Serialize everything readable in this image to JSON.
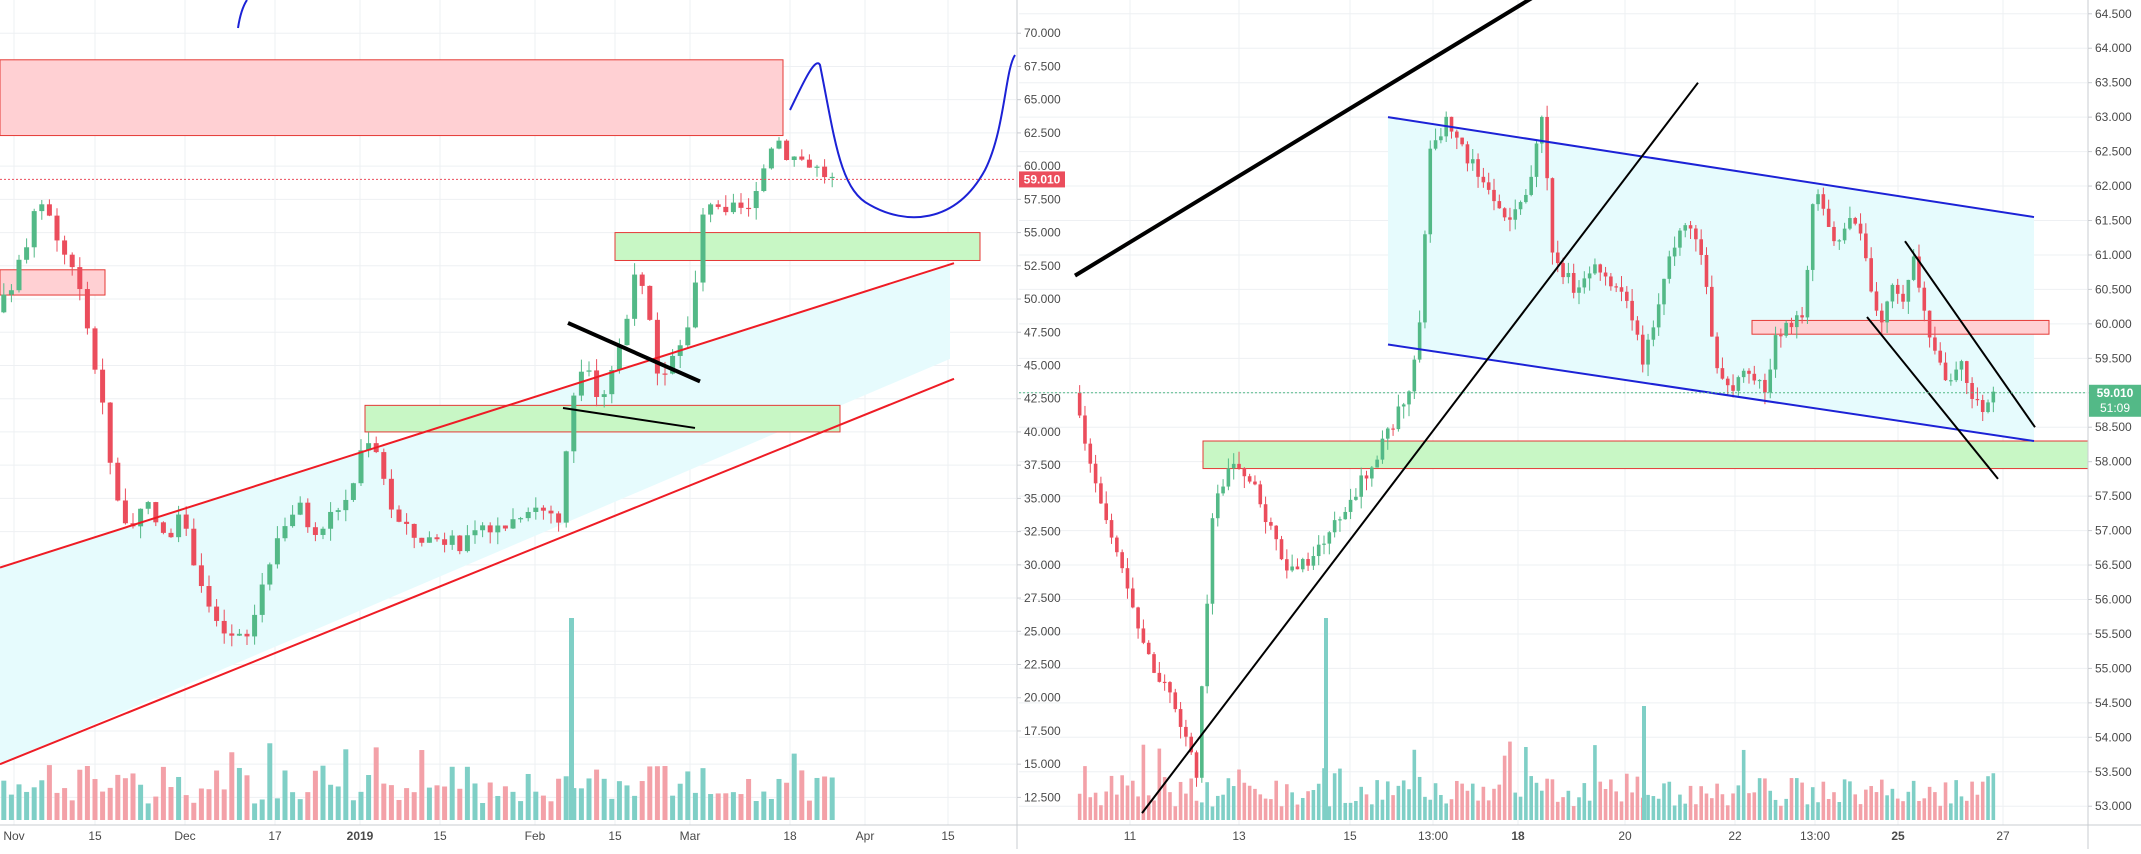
{
  "chart_data": [
    {
      "type": "candlestick",
      "panel": "left",
      "timeframe": "daily",
      "price_axis": {
        "ylim": [
          10.8,
          72.5
        ],
        "ticks": [
          "70.000",
          "67.500",
          "65.000",
          "62.500",
          "60.000",
          "57.500",
          "55.000",
          "52.500",
          "50.000",
          "47.500",
          "45.000",
          "42.500",
          "40.000",
          "37.500",
          "35.000",
          "32.500",
          "30.000",
          "27.500",
          "25.000",
          "22.500",
          "20.000",
          "17.500",
          "15.000",
          "12.500"
        ]
      },
      "time_axis": {
        "labels": [
          "Nov",
          "15",
          "Dec",
          "17",
          "2019",
          "15",
          "Feb",
          "15",
          "Mar",
          "18",
          "Apr",
          "15"
        ],
        "bold_labels": [
          "2019"
        ]
      },
      "last_price_label": "59.010",
      "grid": true,
      "legend": "none",
      "price_path": [
        [
          "2018-10-29",
          49
        ],
        [
          "2018-11-01",
          51
        ],
        [
          "2018-11-05",
          56.5
        ],
        [
          "2018-11-07",
          57.5
        ],
        [
          "2018-11-09",
          54
        ],
        [
          "2018-11-12",
          52.5
        ],
        [
          "2018-11-15",
          46
        ],
        [
          "2018-11-17",
          42.5
        ],
        [
          "2018-11-19",
          35.5
        ],
        [
          "2018-11-22",
          32.5
        ],
        [
          "2018-11-25",
          34.5
        ],
        [
          "2018-11-28",
          32
        ],
        [
          "2018-12-01",
          33.5
        ],
        [
          "2018-12-04",
          29.5
        ],
        [
          "2018-12-07",
          25.5
        ],
        [
          "2018-12-10",
          24.5
        ],
        [
          "2018-12-13",
          24.5
        ],
        [
          "2018-12-16",
          29.5
        ],
        [
          "2018-12-19",
          33
        ],
        [
          "2018-12-22",
          34.5
        ],
        [
          "2018-12-25",
          32
        ],
        [
          "2018-12-28",
          34
        ],
        [
          "2018-12-31",
          35
        ],
        [
          "2019-01-02",
          38.5
        ],
        [
          "2019-01-04",
          40
        ],
        [
          "2019-01-06",
          37
        ],
        [
          "2019-01-08",
          33.5
        ],
        [
          "2019-01-12",
          32
        ],
        [
          "2019-01-16",
          32
        ],
        [
          "2019-01-20",
          31.5
        ],
        [
          "2019-01-24",
          32.5
        ],
        [
          "2019-01-28",
          33
        ],
        [
          "2019-02-01",
          34.5
        ],
        [
          "2019-02-05",
          34
        ],
        [
          "2019-02-07",
          33
        ],
        [
          "2019-02-08",
          40.5
        ],
        [
          "2019-02-10",
          45
        ],
        [
          "2019-02-12",
          44
        ],
        [
          "2019-02-14",
          42.5
        ],
        [
          "2019-02-16",
          45
        ],
        [
          "2019-02-18",
          47.5
        ],
        [
          "2019-02-20",
          51.5
        ],
        [
          "2019-02-22",
          50
        ],
        [
          "2019-02-24",
          44
        ],
        [
          "2019-02-26",
          45
        ],
        [
          "2019-02-28",
          47
        ],
        [
          "2019-03-02",
          48
        ],
        [
          "2019-03-04",
          56
        ],
        [
          "2019-03-06",
          58
        ],
        [
          "2019-03-08",
          56
        ],
        [
          "2019-03-10",
          57
        ],
        [
          "2019-03-13",
          56.5
        ],
        [
          "2019-03-15",
          60
        ],
        [
          "2019-03-17",
          62.5
        ],
        [
          "2019-03-19",
          61
        ],
        [
          "2019-03-22",
          60.5
        ],
        [
          "2019-03-24",
          60
        ],
        [
          "2019-03-27",
          59
        ]
      ],
      "volume_max": 12.5
    },
    {
      "type": "candlestick",
      "panel": "right",
      "timeframe": "intraday",
      "price_axis": {
        "ylim": [
          52.8,
          64.7
        ],
        "ticks": [
          "64.500",
          "64.000",
          "63.500",
          "63.000",
          "62.500",
          "62.000",
          "61.500",
          "61.000",
          "60.500",
          "60.000",
          "59.500",
          "59.000",
          "58.500",
          "58.000",
          "57.500",
          "57.000",
          "56.500",
          "56.000",
          "55.500",
          "55.000",
          "54.500",
          "54.000",
          "53.500",
          "53.000"
        ]
      },
      "time_axis": {
        "labels": [
          "11",
          "13",
          "15",
          "13:00",
          "18",
          "20",
          "22",
          "13:00",
          "25",
          "27"
        ],
        "bold_labels": [
          "18",
          "25"
        ]
      },
      "last_price_label": "59.010",
      "countdown_label": "51:09",
      "grid": true,
      "legend": "none",
      "price_path": [
        [
          0,
          59
        ],
        [
          3,
          58
        ],
        [
          6,
          57
        ],
        [
          10,
          56
        ],
        [
          14,
          55
        ],
        [
          18,
          54.5
        ],
        [
          22,
          53.5
        ],
        [
          25,
          57.5
        ],
        [
          29,
          58
        ],
        [
          33,
          57.5
        ],
        [
          38,
          56.5
        ],
        [
          42,
          56.5
        ],
        [
          46,
          57
        ],
        [
          50,
          57.5
        ],
        [
          54,
          58
        ],
        [
          57,
          58.5
        ],
        [
          60,
          59
        ],
        [
          62,
          60
        ],
        [
          64,
          62.5
        ],
        [
          67,
          63
        ],
        [
          70,
          62.5
        ],
        [
          74,
          62
        ],
        [
          78,
          61.5
        ],
        [
          82,
          62
        ],
        [
          84,
          63
        ],
        [
          86,
          61
        ],
        [
          90,
          60.5
        ],
        [
          94,
          60.8
        ],
        [
          98,
          60.5
        ],
        [
          101,
          60
        ],
        [
          102,
          59.3
        ],
        [
          104,
          60
        ],
        [
          107,
          61
        ],
        [
          110,
          61.5
        ],
        [
          113,
          61
        ],
        [
          115,
          59.5
        ],
        [
          118,
          59
        ],
        [
          121,
          59.3
        ],
        [
          124,
          59
        ],
        [
          126,
          59.8
        ],
        [
          129,
          60
        ],
        [
          131,
          60.2
        ],
        [
          133,
          62
        ],
        [
          135,
          61.5
        ],
        [
          137,
          61
        ],
        [
          139,
          61.5
        ],
        [
          141,
          61.5
        ],
        [
          143,
          60.5
        ],
        [
          145,
          60
        ],
        [
          147,
          60.5
        ],
        [
          149,
          60.3
        ],
        [
          151,
          61
        ],
        [
          153,
          60
        ],
        [
          155,
          59.5
        ],
        [
          157,
          59.2
        ],
        [
          159,
          59.5
        ],
        [
          161,
          59
        ],
        [
          163,
          58.8
        ],
        [
          165,
          59
        ]
      ],
      "volume_max": 12.5
    }
  ],
  "colors": {
    "up": "#26a69a",
    "up_candle": "#53b987",
    "down": "#eb4d5c",
    "up_volume": "#7fcfc6",
    "down_volume": "#f3a1a8",
    "grid": "#eef0f3",
    "channel_fill": "#e6fbfd",
    "resistance_fill": "#ffd0d3",
    "resistance_border": "#e53935",
    "support_fill": "#c8f7c5",
    "support_border": "#e53935",
    "red_line": "#ee1c25",
    "blue_line": "#1c22d6",
    "black_line": "#000000",
    "price_label_left": "#eb4d5c",
    "price_label_right": "#53b987"
  }
}
